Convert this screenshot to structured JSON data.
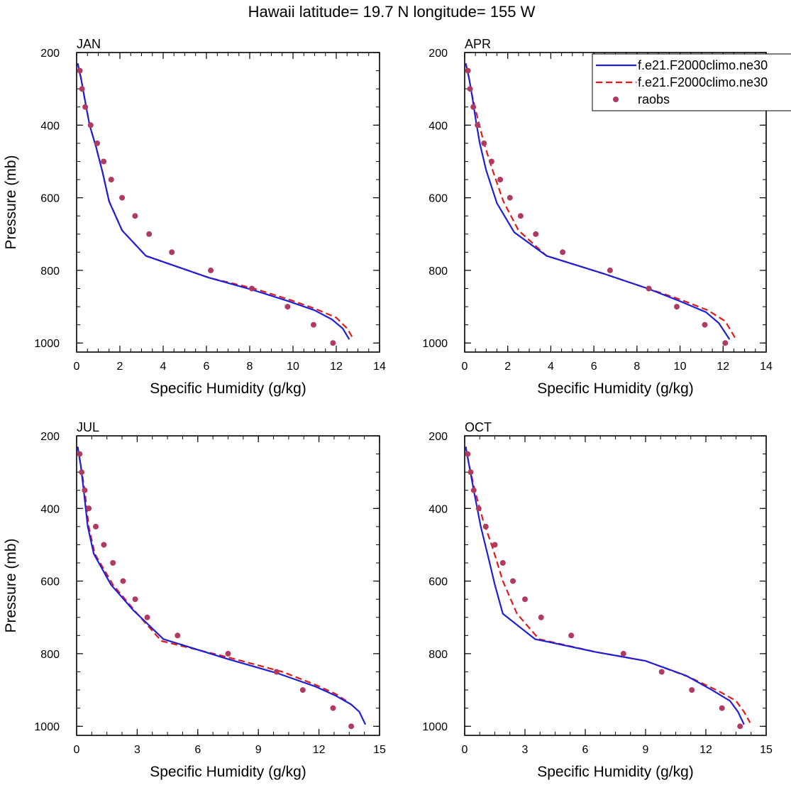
{
  "figure": {
    "title": "Hawaii  latitude= 19.7 N longitude= 155 W"
  },
  "legend": {
    "entries": [
      {
        "label": "f.e21.F2000climo.ne30",
        "style": "solid",
        "color": "#1f1fd6"
      },
      {
        "label": "f.e21.F2000climo.ne30",
        "style": "dashed",
        "color": "#e01a1a"
      },
      {
        "label": "raobs",
        "style": "dots",
        "color": "#b03a60"
      }
    ]
  },
  "colors": {
    "model_solid": "#1f1fd6",
    "model_dashed": "#e01a1a",
    "raobs": "#b03a60"
  },
  "chart_data": [
    {
      "type": "line",
      "panel": "JAN",
      "xlabel": "Specific Humidity (g/kg)",
      "ylabel": "Pressure (mb)",
      "xlim": [
        0,
        14
      ],
      "xticks": [
        0,
        2,
        4,
        6,
        8,
        10,
        12,
        14
      ],
      "ylim": [
        200,
        1025
      ],
      "yticks": [
        200,
        400,
        600,
        800,
        1000
      ],
      "y_inverted": true,
      "series": [
        {
          "style": "solid",
          "points": [
            [
              0.05,
              230
            ],
            [
              0.2,
              270
            ],
            [
              0.35,
              320
            ],
            [
              0.6,
              400
            ],
            [
              0.9,
              460
            ],
            [
              1.2,
              530
            ],
            [
              1.5,
              610
            ],
            [
              2.1,
              690
            ],
            [
              3.2,
              760
            ],
            [
              6.1,
              820
            ],
            [
              8.2,
              855
            ],
            [
              9.8,
              885
            ],
            [
              11.0,
              910
            ],
            [
              11.8,
              935
            ],
            [
              12.3,
              960
            ],
            [
              12.6,
              990
            ]
          ]
        },
        {
          "style": "dashed",
          "points": [
            [
              0.05,
              230
            ],
            [
              0.2,
              270
            ],
            [
              0.35,
              320
            ],
            [
              0.6,
              400
            ],
            [
              0.9,
              460
            ],
            [
              1.2,
              530
            ],
            [
              1.5,
              610
            ],
            [
              2.1,
              690
            ],
            [
              3.2,
              760
            ],
            [
              6.1,
              820
            ],
            [
              8.2,
              850
            ],
            [
              9.8,
              880
            ],
            [
              11.0,
              905
            ],
            [
              12.0,
              930
            ],
            [
              12.5,
              960
            ],
            [
              12.8,
              990
            ]
          ]
        }
      ],
      "raobs": [
        [
          0.15,
          250
        ],
        [
          0.25,
          300
        ],
        [
          0.4,
          350
        ],
        [
          0.65,
          400
        ],
        [
          0.95,
          450
        ],
        [
          1.25,
          500
        ],
        [
          1.6,
          550
        ],
        [
          2.1,
          600
        ],
        [
          2.7,
          650
        ],
        [
          3.35,
          700
        ],
        [
          4.4,
          750
        ],
        [
          6.2,
          800
        ],
        [
          8.1,
          850
        ],
        [
          9.75,
          900
        ],
        [
          10.95,
          950
        ],
        [
          11.85,
          1000
        ]
      ]
    },
    {
      "type": "line",
      "panel": "APR",
      "xlabel": "Specific Humidity (g/kg)",
      "ylabel": "",
      "xlim": [
        0,
        14
      ],
      "xticks": [
        0,
        2,
        4,
        6,
        8,
        10,
        12,
        14
      ],
      "ylim": [
        200,
        1025
      ],
      "yticks": [
        200,
        400,
        600,
        800,
        1000
      ],
      "y_inverted": true,
      "series": [
        {
          "style": "solid",
          "points": [
            [
              0.05,
              230
            ],
            [
              0.2,
              270
            ],
            [
              0.35,
              320
            ],
            [
              0.5,
              380
            ],
            [
              0.7,
              450
            ],
            [
              1.0,
              525
            ],
            [
              1.5,
              615
            ],
            [
              2.3,
              695
            ],
            [
              3.8,
              760
            ],
            [
              6.5,
              810
            ],
            [
              8.5,
              850
            ],
            [
              10.0,
              885
            ],
            [
              11.2,
              915
            ],
            [
              11.8,
              945
            ],
            [
              12.3,
              990
            ]
          ]
        },
        {
          "style": "dashed",
          "points": [
            [
              0.05,
              230
            ],
            [
              0.2,
              270
            ],
            [
              0.35,
              320
            ],
            [
              0.6,
              380
            ],
            [
              0.9,
              450
            ],
            [
              1.3,
              525
            ],
            [
              1.8,
              610
            ],
            [
              2.5,
              690
            ],
            [
              3.8,
              760
            ],
            [
              6.5,
              810
            ],
            [
              8.5,
              850
            ],
            [
              10.0,
              880
            ],
            [
              11.3,
              910
            ],
            [
              12.1,
              940
            ],
            [
              12.6,
              990
            ]
          ]
        }
      ],
      "raobs": [
        [
          0.15,
          250
        ],
        [
          0.25,
          300
        ],
        [
          0.4,
          350
        ],
        [
          0.6,
          400
        ],
        [
          0.9,
          450
        ],
        [
          1.25,
          500
        ],
        [
          1.65,
          550
        ],
        [
          2.1,
          600
        ],
        [
          2.6,
          650
        ],
        [
          3.3,
          700
        ],
        [
          4.55,
          750
        ],
        [
          6.75,
          800
        ],
        [
          8.55,
          850
        ],
        [
          9.85,
          900
        ],
        [
          11.15,
          950
        ],
        [
          12.1,
          1000
        ]
      ]
    },
    {
      "type": "line",
      "panel": "JUL",
      "xlabel": "Specific Humidity (g/kg)",
      "ylabel": "Pressure (mb)",
      "xlim": [
        0,
        15
      ],
      "xticks": [
        0,
        3,
        6,
        9,
        12,
        15
      ],
      "ylim": [
        200,
        1025
      ],
      "yticks": [
        200,
        400,
        600,
        800,
        1000
      ],
      "y_inverted": true,
      "series": [
        {
          "style": "solid",
          "points": [
            [
              0.05,
              230
            ],
            [
              0.2,
              280
            ],
            [
              0.35,
              350
            ],
            [
              0.55,
              450
            ],
            [
              0.85,
              525
            ],
            [
              1.7,
              610
            ],
            [
              2.8,
              680
            ],
            [
              4.3,
              760
            ],
            [
              7.5,
              815
            ],
            [
              10.0,
              855
            ],
            [
              11.8,
              890
            ],
            [
              12.8,
              915
            ],
            [
              13.6,
              940
            ],
            [
              14.0,
              960
            ],
            [
              14.3,
              995
            ]
          ]
        },
        {
          "style": "dashed",
          "points": [
            [
              0.05,
              230
            ],
            [
              0.2,
              280
            ],
            [
              0.4,
              350
            ],
            [
              0.6,
              450
            ],
            [
              0.9,
              525
            ],
            [
              1.8,
              610
            ],
            [
              3.0,
              690
            ],
            [
              4.2,
              765
            ],
            [
              7.5,
              810
            ],
            [
              10.2,
              850
            ],
            [
              11.8,
              885
            ],
            [
              12.8,
              910
            ],
            [
              13.5,
              935
            ]
          ]
        }
      ],
      "raobs": [
        [
          0.15,
          250
        ],
        [
          0.25,
          300
        ],
        [
          0.4,
          350
        ],
        [
          0.6,
          400
        ],
        [
          0.95,
          450
        ],
        [
          1.35,
          500
        ],
        [
          1.8,
          550
        ],
        [
          2.3,
          600
        ],
        [
          2.9,
          650
        ],
        [
          3.5,
          700
        ],
        [
          5.0,
          750
        ],
        [
          7.5,
          800
        ],
        [
          9.9,
          850
        ],
        [
          11.2,
          900
        ],
        [
          12.7,
          950
        ],
        [
          13.6,
          1000
        ]
      ]
    },
    {
      "type": "line",
      "panel": "OCT",
      "xlabel": "Specific Humidity (g/kg)",
      "ylabel": "",
      "xlim": [
        0,
        15
      ],
      "xticks": [
        0,
        3,
        6,
        9,
        12,
        15
      ],
      "ylim": [
        200,
        1025
      ],
      "yticks": [
        200,
        400,
        600,
        800,
        1000
      ],
      "y_inverted": true,
      "series": [
        {
          "style": "solid",
          "points": [
            [
              0.05,
              230
            ],
            [
              0.2,
              275
            ],
            [
              0.45,
              350
            ],
            [
              0.8,
              450
            ],
            [
              1.2,
              540
            ],
            [
              1.5,
              610
            ],
            [
              1.9,
              690
            ],
            [
              3.5,
              760
            ],
            [
              6.5,
              795
            ],
            [
              9.0,
              820
            ],
            [
              11.0,
              860
            ],
            [
              12.3,
              900
            ],
            [
              13.2,
              930
            ],
            [
              13.6,
              960
            ],
            [
              13.9,
              995
            ]
          ]
        },
        {
          "style": "dashed",
          "points": [
            [
              0.05,
              230
            ],
            [
              0.2,
              275
            ],
            [
              0.5,
              350
            ],
            [
              0.9,
              430
            ],
            [
              1.4,
              510
            ],
            [
              1.9,
              600
            ],
            [
              2.6,
              690
            ],
            [
              3.7,
              760
            ],
            [
              6.5,
              795
            ],
            [
              9.0,
              820
            ],
            [
              11.2,
              865
            ],
            [
              12.7,
              905
            ],
            [
              13.5,
              930
            ],
            [
              13.9,
              960
            ],
            [
              14.2,
              990
            ]
          ]
        }
      ],
      "raobs": [
        [
          0.15,
          250
        ],
        [
          0.3,
          300
        ],
        [
          0.45,
          350
        ],
        [
          0.7,
          400
        ],
        [
          1.05,
          450
        ],
        [
          1.5,
          500
        ],
        [
          1.9,
          550
        ],
        [
          2.4,
          600
        ],
        [
          3.0,
          650
        ],
        [
          3.8,
          700
        ],
        [
          5.3,
          750
        ],
        [
          7.9,
          800
        ],
        [
          9.8,
          850
        ],
        [
          11.3,
          900
        ],
        [
          12.8,
          950
        ],
        [
          13.7,
          1000
        ]
      ]
    }
  ]
}
